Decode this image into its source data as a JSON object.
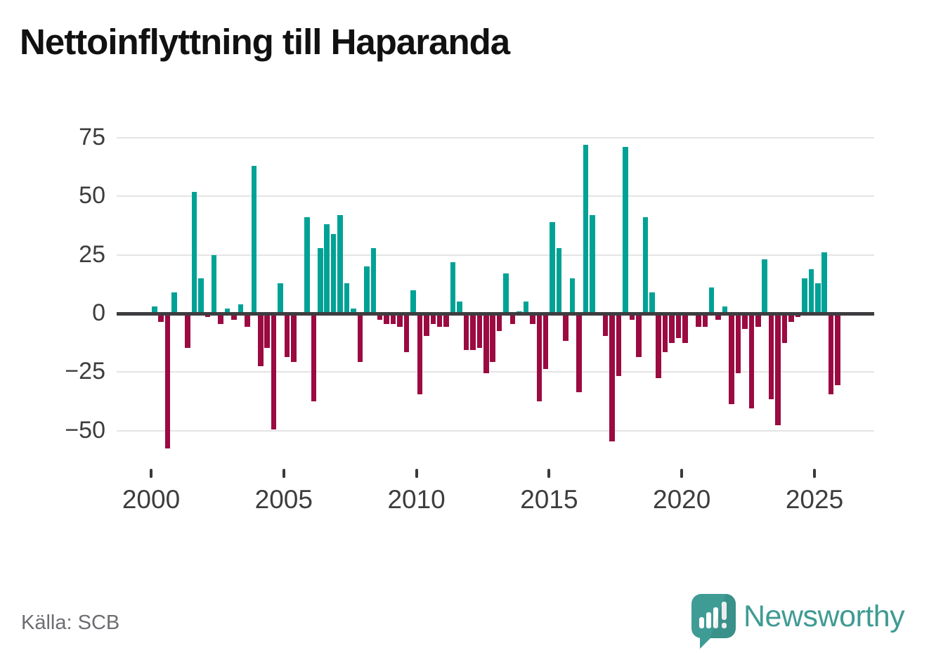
{
  "header": {
    "title": "Nettoinflyttning till Haparanda"
  },
  "footer": {
    "source_label": "Källa: SCB",
    "logo_text": "Newsworthy"
  },
  "chart_data": {
    "type": "bar",
    "title": "Nettoinflyttning till Haparanda",
    "frequency": "quarterly",
    "start": "2000-Q1",
    "end": "2025-Q4",
    "x_tick_labels": [
      "2000",
      "2005",
      "2010",
      "2015",
      "2020",
      "2025"
    ],
    "y_ticks": [
      75,
      50,
      25,
      0,
      -25,
      -50
    ],
    "ylim": [
      -60,
      80
    ],
    "grid": true,
    "legend": "none",
    "series": [
      {
        "name": "Nettoinflyttning",
        "values": [
          3,
          -3,
          -57,
          9,
          0,
          -14,
          52,
          15,
          -1,
          25,
          -4,
          2,
          -2,
          4,
          -5,
          63,
          -22,
          -14,
          -49,
          13,
          -18,
          -20,
          0,
          41,
          -37,
          28,
          38,
          34,
          42,
          13,
          2,
          -20,
          20,
          28,
          -2,
          -4,
          -4,
          -5,
          -16,
          10,
          -34,
          -9,
          -4,
          -5,
          -5,
          22,
          5,
          -15,
          -15,
          -14,
          -25,
          -20,
          -7,
          17,
          -4,
          1,
          5,
          -4,
          -37,
          -23,
          39,
          28,
          -11,
          15,
          -33,
          72,
          42,
          0,
          -9,
          -54,
          -26,
          71,
          -2,
          -18,
          41,
          9,
          -27,
          -16,
          -12,
          -10,
          -12,
          0,
          -5,
          -5,
          11,
          -2,
          3,
          -38,
          -25,
          -6,
          -40,
          -5,
          23,
          -36,
          -47,
          -12,
          -3,
          -1,
          15,
          19,
          13,
          26,
          -34,
          -30
        ]
      }
    ],
    "colors": {
      "positive": "#00a296",
      "negative": "#9b0a41",
      "axis": "#3d3d40",
      "gridline": "#e4e4e4",
      "tick_text": "#3d3d3d"
    }
  }
}
